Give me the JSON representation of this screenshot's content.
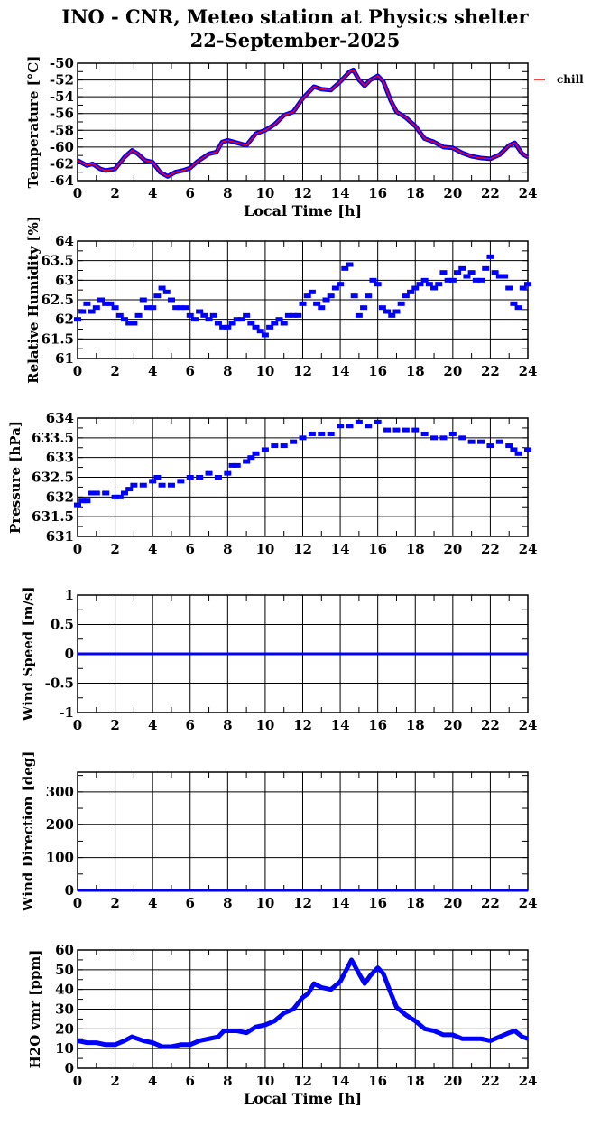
{
  "title_line1": "INO - CNR, Meteo station at Physics shelter",
  "title_line2": "22-September-2025",
  "legend": {
    "label": "chill",
    "color": "#ff0000"
  },
  "colors": {
    "series": "#0000ff",
    "overlay": "#ff0000",
    "grid": "#000000"
  },
  "chart_data": [
    {
      "type": "line",
      "ylabel": "Temperature [°C]",
      "xlabel": "Local Time [h]",
      "xlim": [
        0,
        24
      ],
      "ylim": [
        -64,
        -50
      ],
      "xticks": [
        0,
        2,
        4,
        6,
        8,
        10,
        12,
        14,
        16,
        18,
        20,
        22,
        24
      ],
      "yticks": [
        -64,
        -62,
        -60,
        -58,
        -56,
        -54,
        -52,
        -50
      ],
      "ytick_labels": [
        "-64",
        "-62",
        "-60",
        "-58",
        "-56",
        "-54",
        "-52",
        "-50"
      ],
      "ygrid_step": 2,
      "yminor_step": 1,
      "series": [
        {
          "name": "temperature",
          "style": "thick-blue",
          "x": [
            0,
            0.5,
            0.8,
            1.2,
            1.5,
            2,
            2.5,
            2.9,
            3.2,
            3.6,
            4,
            4.4,
            4.8,
            5.2,
            5.6,
            6,
            6.4,
            7,
            7.4,
            7.7,
            8,
            8.5,
            9,
            9.5,
            10,
            10.5,
            11,
            11.5,
            12,
            12.3,
            12.6,
            13,
            13.5,
            14,
            14.5,
            14.7,
            15,
            15.3,
            15.6,
            16,
            16.3,
            16.7,
            17,
            17.5,
            18,
            18.5,
            19,
            19.5,
            20,
            20.5,
            21,
            21.5,
            22,
            22.5,
            23,
            23.3,
            23.7,
            24
          ],
          "y": [
            -61.6,
            -62.2,
            -62.0,
            -62.6,
            -62.8,
            -62.6,
            -61.2,
            -60.4,
            -60.8,
            -61.6,
            -61.8,
            -63.0,
            -63.5,
            -63.0,
            -62.8,
            -62.5,
            -61.7,
            -60.8,
            -60.6,
            -59.4,
            -59.2,
            -59.5,
            -59.8,
            -58.4,
            -58.0,
            -57.3,
            -56.2,
            -55.8,
            -54.2,
            -53.5,
            -52.8,
            -53.1,
            -53.2,
            -52.2,
            -51.0,
            -50.8,
            -52.0,
            -52.7,
            -52.0,
            -51.5,
            -52.2,
            -54.5,
            -55.8,
            -56.5,
            -57.5,
            -59.0,
            -59.4,
            -60.0,
            -60.1,
            -60.7,
            -61.1,
            -61.3,
            -61.4,
            -60.9,
            -59.8,
            -59.5,
            -60.8,
            -61.2
          ]
        },
        {
          "name": "chill",
          "style": "thin-red",
          "same_as": "temperature"
        }
      ]
    },
    {
      "type": "scatter",
      "ylabel": "Relative Humidity [%]",
      "xlabel": "",
      "xlim": [
        0,
        24
      ],
      "ylim": [
        61,
        64
      ],
      "xticks": [
        0,
        2,
        4,
        6,
        8,
        10,
        12,
        14,
        16,
        18,
        20,
        22,
        24
      ],
      "yticks": [
        61,
        61.5,
        62,
        62.5,
        63,
        63.5,
        64
      ],
      "ytick_labels": [
        "61",
        "61.5",
        "62",
        "62.5",
        "63",
        "63.5",
        "64"
      ],
      "ygrid_step": 0.5,
      "yminor_step": 0.25,
      "series": [
        {
          "name": "humidity",
          "x": [
            0,
            0.25,
            0.5,
            0.75,
            1,
            1.25,
            1.5,
            1.75,
            2,
            2.25,
            2.5,
            2.75,
            3,
            3.25,
            3.5,
            3.75,
            4,
            4.25,
            4.5,
            4.75,
            5,
            5.25,
            5.5,
            5.75,
            6,
            6.25,
            6.5,
            6.75,
            7,
            7.25,
            7.5,
            7.75,
            8,
            8.25,
            8.5,
            8.75,
            9,
            9.25,
            9.5,
            9.75,
            10,
            10.25,
            10.5,
            10.75,
            11,
            11.25,
            11.5,
            11.75,
            12,
            12.25,
            12.5,
            12.75,
            13,
            13.25,
            13.5,
            13.75,
            14,
            14.25,
            14.5,
            14.75,
            15,
            15.25,
            15.5,
            15.75,
            16,
            16.25,
            16.5,
            16.75,
            17,
            17.25,
            17.5,
            17.75,
            18,
            18.25,
            18.5,
            18.75,
            19,
            19.25,
            19.5,
            19.75,
            20,
            20.25,
            20.5,
            20.75,
            21,
            21.25,
            21.5,
            21.75,
            22,
            22.25,
            22.5,
            22.75,
            23,
            23.25,
            23.5,
            23.75,
            24
          ],
          "y": [
            62.0,
            62.2,
            62.4,
            62.2,
            62.3,
            62.5,
            62.4,
            62.4,
            62.3,
            62.1,
            62.0,
            61.9,
            61.9,
            62.1,
            62.5,
            62.3,
            62.3,
            62.6,
            62.8,
            62.7,
            62.5,
            62.3,
            62.3,
            62.3,
            62.1,
            62.0,
            62.2,
            62.1,
            62.0,
            62.1,
            61.9,
            61.8,
            61.8,
            61.9,
            62.0,
            62.0,
            62.1,
            61.9,
            61.8,
            61.7,
            61.6,
            61.8,
            61.9,
            62.0,
            61.9,
            62.1,
            62.1,
            62.1,
            62.4,
            62.6,
            62.7,
            62.4,
            62.3,
            62.5,
            62.6,
            62.8,
            62.9,
            63.3,
            63.4,
            62.6,
            62.1,
            62.3,
            62.6,
            63.0,
            62.9,
            62.3,
            62.2,
            62.1,
            62.2,
            62.4,
            62.6,
            62.7,
            62.8,
            62.9,
            63.0,
            62.9,
            62.8,
            62.9,
            63.2,
            63.0,
            63.0,
            63.2,
            63.3,
            63.1,
            63.2,
            63.0,
            63.0,
            63.3,
            63.6,
            63.2,
            63.1,
            63.1,
            62.8,
            62.4,
            62.3,
            62.8,
            62.9
          ]
        }
      ]
    },
    {
      "type": "scatter",
      "ylabel": "Pressure [hPa]",
      "xlabel": "",
      "xlim": [
        0,
        24
      ],
      "ylim": [
        631,
        634
      ],
      "xticks": [
        0,
        2,
        4,
        6,
        8,
        10,
        12,
        14,
        16,
        18,
        20,
        22,
        24
      ],
      "yticks": [
        631,
        631.5,
        632,
        632.5,
        633,
        633.5,
        634
      ],
      "ytick_labels": [
        "631",
        "631.5",
        "632",
        "632.5",
        "633",
        "633.5",
        "634"
      ],
      "ygrid_step": 0.5,
      "yminor_step": 0.25,
      "series": [
        {
          "name": "pressure",
          "x": [
            0,
            0.25,
            0.5,
            0.75,
            1,
            1.5,
            2,
            2.25,
            2.5,
            2.75,
            3,
            3.5,
            4,
            4.25,
            4.5,
            5,
            5.5,
            6,
            6.5,
            7,
            7.5,
            8,
            8.25,
            8.5,
            9,
            9.25,
            9.5,
            10,
            10.5,
            11,
            11.5,
            12,
            12.5,
            13,
            13.5,
            14,
            14.5,
            15,
            15.5,
            16,
            16.5,
            17,
            17.5,
            18,
            18.5,
            19,
            19.5,
            20,
            20.5,
            21,
            21.5,
            22,
            22.5,
            23,
            23.25,
            23.5,
            24
          ],
          "y": [
            631.8,
            631.9,
            631.9,
            632.1,
            632.1,
            632.1,
            632.0,
            632.0,
            632.1,
            632.2,
            632.3,
            632.3,
            632.4,
            632.5,
            632.3,
            632.3,
            632.4,
            632.5,
            632.5,
            632.6,
            632.5,
            632.6,
            632.8,
            632.8,
            632.9,
            633.0,
            633.1,
            633.2,
            633.3,
            633.3,
            633.4,
            633.5,
            633.6,
            633.6,
            633.6,
            633.8,
            633.8,
            633.9,
            633.8,
            633.9,
            633.7,
            633.7,
            633.7,
            633.7,
            633.6,
            633.5,
            633.5,
            633.6,
            633.5,
            633.4,
            633.4,
            633.3,
            633.4,
            633.3,
            633.2,
            633.1,
            633.2
          ]
        }
      ]
    },
    {
      "type": "line",
      "ylabel": "Wind Speed [m/s]",
      "xlabel": "",
      "xlim": [
        0,
        24
      ],
      "ylim": [
        -1,
        1
      ],
      "xticks": [
        0,
        2,
        4,
        6,
        8,
        10,
        12,
        14,
        16,
        18,
        20,
        22,
        24
      ],
      "yticks": [
        -1,
        -0.5,
        0,
        0.5,
        1
      ],
      "ytick_labels": [
        "-1",
        "-0.5",
        "0",
        "0.5",
        "1"
      ],
      "ygrid_step": 0.5,
      "yminor_step": 0.25,
      "series": [
        {
          "name": "wind_speed",
          "style": "blue",
          "x": [
            0,
            24
          ],
          "y": [
            0,
            0
          ]
        }
      ]
    },
    {
      "type": "line",
      "ylabel": "Wind Direction [deg]",
      "xlabel": "",
      "xlim": [
        0,
        24
      ],
      "ylim": [
        0,
        360
      ],
      "xticks": [
        0,
        2,
        4,
        6,
        8,
        10,
        12,
        14,
        16,
        18,
        20,
        22,
        24
      ],
      "yticks": [
        0,
        100,
        200,
        300
      ],
      "ytick_labels": [
        "0",
        "100",
        "200",
        "300"
      ],
      "ygrid_step": 100,
      "yminor_step": 50,
      "series": [
        {
          "name": "wind_direction",
          "style": "blue",
          "x": [
            0,
            24
          ],
          "y": [
            0,
            0
          ]
        }
      ]
    },
    {
      "type": "line",
      "ylabel": "H2O vmr [ppm]",
      "xlabel": "Local Time [h]",
      "xlim": [
        0,
        24
      ],
      "ylim": [
        0,
        60
      ],
      "xticks": [
        0,
        2,
        4,
        6,
        8,
        10,
        12,
        14,
        16,
        18,
        20,
        22,
        24
      ],
      "yticks": [
        0,
        10,
        20,
        30,
        40,
        50,
        60
      ],
      "ytick_labels": [
        "0",
        "10",
        "20",
        "30",
        "40",
        "50",
        "60"
      ],
      "ygrid_step": 10,
      "yminor_step": 5,
      "series": [
        {
          "name": "h2o",
          "style": "thick-blue",
          "x": [
            0,
            0.5,
            1,
            1.5,
            2,
            2.5,
            2.9,
            3.5,
            4,
            4.5,
            5,
            5.5,
            6,
            6.5,
            7,
            7.5,
            7.8,
            8.5,
            9,
            9.5,
            10,
            10.5,
            11,
            11.5,
            12,
            12.3,
            12.6,
            13,
            13.5,
            14,
            14.6,
            15,
            15.3,
            15.6,
            16,
            16.3,
            16.7,
            17,
            17.5,
            18,
            18.5,
            19,
            19.5,
            20,
            20.5,
            21,
            21.5,
            22,
            22.5,
            23,
            23.3,
            23.7,
            24
          ],
          "y": [
            14,
            13,
            13,
            12,
            12,
            14,
            16,
            14,
            13,
            11,
            11,
            12,
            12,
            14,
            15,
            16,
            19,
            19,
            18,
            21,
            22,
            24,
            28,
            30,
            36,
            38,
            43,
            41,
            40,
            44,
            55,
            48,
            43,
            47,
            51,
            48,
            38,
            31,
            27,
            24,
            20,
            19,
            17,
            17,
            15,
            15,
            15,
            14,
            16,
            18,
            19,
            16,
            15
          ]
        }
      ]
    }
  ]
}
